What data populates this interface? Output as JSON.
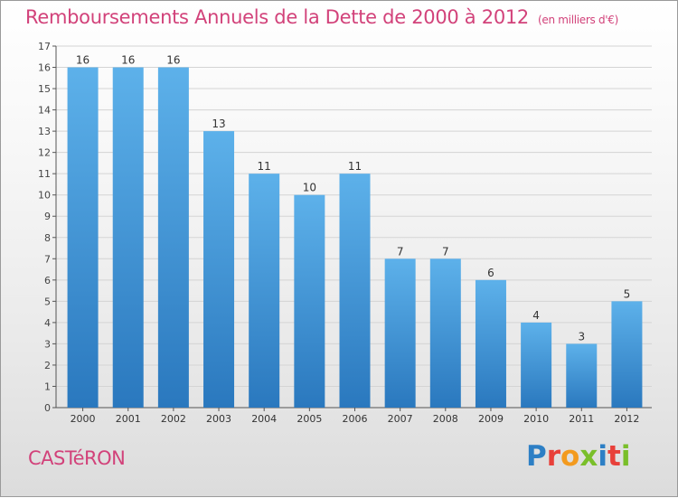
{
  "page": {
    "title": "Remboursements Annuels de la Dette de 2000 à 2012",
    "unit_note": "(en milliers d'€)",
    "commune_name": "CASTéRON",
    "logo_text": "Proxiti"
  },
  "colors": {
    "title": "#d2427a",
    "bar_light": "#5db1ea",
    "bar_dark": "#2a78be",
    "logo_letters": [
      "#2d7fc5",
      "#e8403a",
      "#f39a1e",
      "#7abf2a",
      "#2d7fc5",
      "#e8403a",
      "#7abf2a"
    ]
  },
  "chart_data": {
    "type": "bar",
    "title": "Remboursements Annuels de la Dette de 2000 à 2012",
    "xlabel": "",
    "ylabel": "",
    "categories": [
      "2000",
      "2001",
      "2002",
      "2003",
      "2004",
      "2005",
      "2006",
      "2007",
      "2008",
      "2009",
      "2010",
      "2011",
      "2012"
    ],
    "values": [
      16,
      16,
      16,
      13,
      11,
      10,
      11,
      7,
      7,
      6,
      4,
      3,
      5
    ],
    "ylim": [
      0,
      17
    ],
    "yticks": [
      0,
      1,
      2,
      3,
      4,
      5,
      6,
      7,
      8,
      9,
      10,
      11,
      12,
      13,
      14,
      15,
      16,
      17
    ],
    "grid": true,
    "data_labels": true
  }
}
